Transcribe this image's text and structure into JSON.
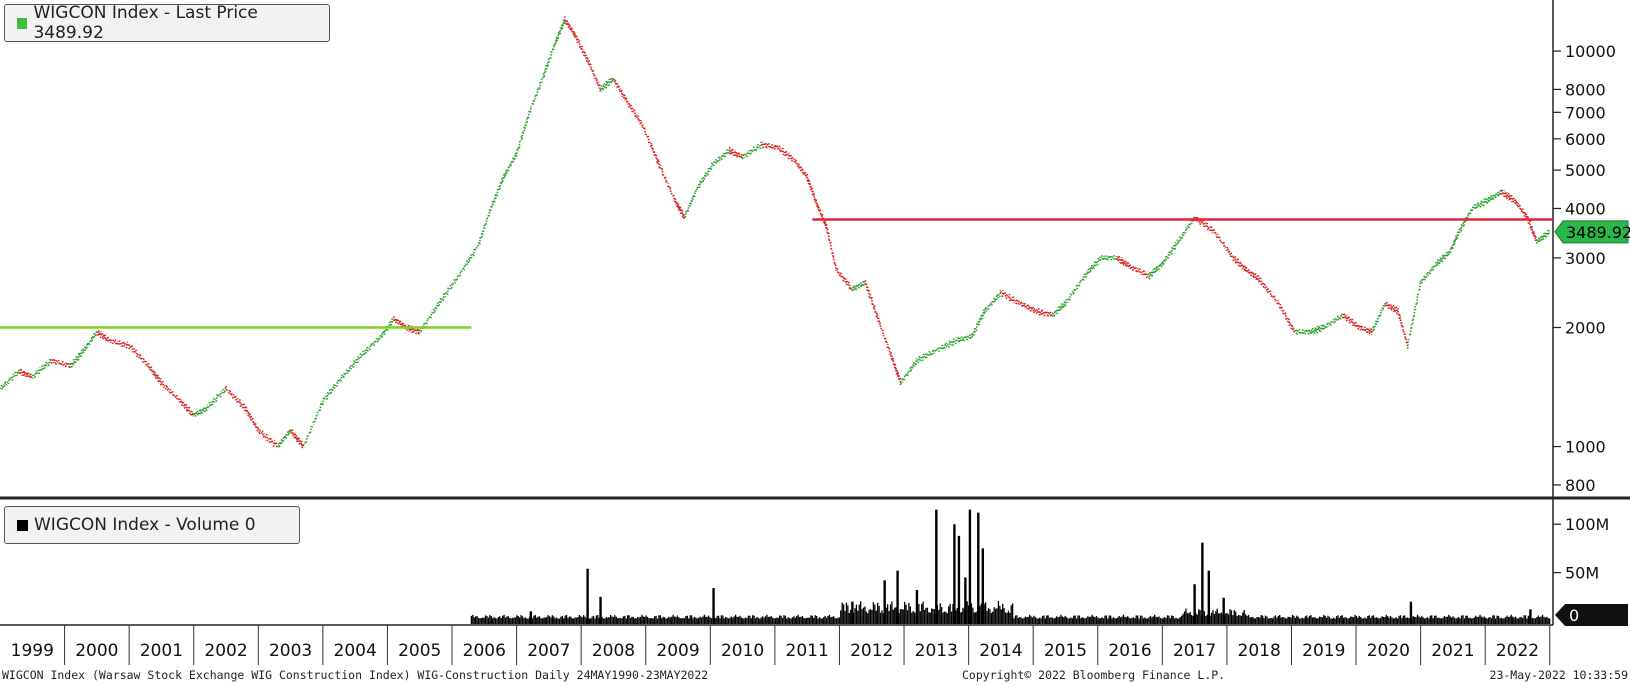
{
  "legend_price": {
    "text": "WIGCON Index - Last Price 3489.92",
    "color": "#3cbf3c"
  },
  "legend_volume": {
    "text": "WIGCON Index - Volume 0",
    "color": "#000000"
  },
  "footer": {
    "description": "WIGCON Index (Warsaw Stock Exchange WIG Construction Index) WIG-Construction  Daily 24MAY1990-23MAY2022",
    "copyright": "Copyright© 2022 Bloomberg Finance L.P.",
    "timestamp": "23-May-2022 10:33:59"
  },
  "chart_data": [
    {
      "type": "line",
      "name": "price",
      "scale": "log",
      "ylim": [
        750,
        13000
      ],
      "xlim": [
        1998.5,
        2022.55
      ],
      "y_ticks": [
        800,
        1000,
        2000,
        3000,
        4000,
        5000,
        6000,
        7000,
        8000,
        10000
      ],
      "y_tick_labels": [
        "800",
        "1000",
        "2000",
        "3000",
        "4000",
        "5000",
        "6000",
        "7000",
        "8000",
        "10000"
      ],
      "last_value_label": "3489.92",
      "up_color": "#2ca02c",
      "down_color": "#d62020",
      "points": [
        [
          1998.5,
          1400
        ],
        [
          1998.8,
          1550
        ],
        [
          1999.0,
          1500
        ],
        [
          1999.3,
          1650
        ],
        [
          1999.6,
          1600
        ],
        [
          1999.8,
          1750
        ],
        [
          2000.0,
          1950
        ],
        [
          2000.2,
          1850
        ],
        [
          2000.5,
          1800
        ],
        [
          2000.8,
          1600
        ],
        [
          2001.0,
          1450
        ],
        [
          2001.3,
          1300
        ],
        [
          2001.5,
          1200
        ],
        [
          2001.7,
          1250
        ],
        [
          2002.0,
          1400
        ],
        [
          2002.3,
          1250
        ],
        [
          2002.5,
          1100
        ],
        [
          2002.8,
          1000
        ],
        [
          2003.0,
          1100
        ],
        [
          2003.2,
          1000
        ],
        [
          2003.5,
          1300
        ],
        [
          2003.8,
          1500
        ],
        [
          2004.1,
          1700
        ],
        [
          2004.4,
          1900
        ],
        [
          2004.6,
          2100
        ],
        [
          2004.8,
          2000
        ],
        [
          2005.0,
          1950
        ],
        [
          2005.3,
          2300
        ],
        [
          2005.6,
          2700
        ],
        [
          2005.9,
          3200
        ],
        [
          2006.1,
          4000
        ],
        [
          2006.3,
          4800
        ],
        [
          2006.5,
          5500
        ],
        [
          2006.7,
          7000
        ],
        [
          2006.9,
          8500
        ],
        [
          2007.1,
          10500
        ],
        [
          2007.25,
          12000
        ],
        [
          2007.4,
          11000
        ],
        [
          2007.6,
          9500
        ],
        [
          2007.8,
          8000
        ],
        [
          2008.0,
          8500
        ],
        [
          2008.2,
          7500
        ],
        [
          2008.45,
          6500
        ],
        [
          2008.7,
          5200
        ],
        [
          2008.95,
          4200
        ],
        [
          2009.1,
          3800
        ],
        [
          2009.3,
          4500
        ],
        [
          2009.55,
          5200
        ],
        [
          2009.8,
          5600
        ],
        [
          2010.0,
          5400
        ],
        [
          2010.3,
          5800
        ],
        [
          2010.55,
          5700
        ],
        [
          2010.8,
          5300
        ],
        [
          2011.0,
          4800
        ],
        [
          2011.15,
          4100
        ],
        [
          2011.3,
          3600
        ],
        [
          2011.45,
          2800
        ],
        [
          2011.7,
          2500
        ],
        [
          2011.9,
          2600
        ],
        [
          2012.1,
          2100
        ],
        [
          2012.3,
          1700
        ],
        [
          2012.45,
          1450
        ],
        [
          2012.7,
          1650
        ],
        [
          2013.0,
          1750
        ],
        [
          2013.3,
          1850
        ],
        [
          2013.55,
          1900
        ],
        [
          2013.75,
          2200
        ],
        [
          2014.0,
          2450
        ],
        [
          2014.3,
          2300
        ],
        [
          2014.55,
          2200
        ],
        [
          2014.8,
          2150
        ],
        [
          2015.0,
          2300
        ],
        [
          2015.3,
          2700
        ],
        [
          2015.55,
          3000
        ],
        [
          2015.8,
          3000
        ],
        [
          2016.0,
          2850
        ],
        [
          2016.3,
          2700
        ],
        [
          2016.5,
          2900
        ],
        [
          2016.75,
          3300
        ],
        [
          2017.0,
          3800
        ],
        [
          2017.3,
          3500
        ],
        [
          2017.6,
          3000
        ],
        [
          2017.8,
          2800
        ],
        [
          2018.0,
          2650
        ],
        [
          2018.3,
          2300
        ],
        [
          2018.55,
          1950
        ],
        [
          2018.8,
          1950
        ],
        [
          2019.0,
          2000
        ],
        [
          2019.3,
          2150
        ],
        [
          2019.55,
          2000
        ],
        [
          2019.75,
          1950
        ],
        [
          2019.95,
          2300
        ],
        [
          2020.15,
          2200
        ],
        [
          2020.3,
          1800
        ],
        [
          2020.5,
          2600
        ],
        [
          2020.75,
          2900
        ],
        [
          2020.95,
          3100
        ],
        [
          2021.1,
          3500
        ],
        [
          2021.3,
          4000
        ],
        [
          2021.55,
          4200
        ],
        [
          2021.75,
          4400
        ],
        [
          2021.95,
          4200
        ],
        [
          2022.15,
          3800
        ],
        [
          2022.3,
          3300
        ],
        [
          2022.5,
          3490
        ]
      ],
      "reference_lines": [
        {
          "y": 2000,
          "x_from": 1998.5,
          "x_to": 2005.8,
          "color": "#7ed321"
        },
        {
          "y": 3750,
          "x_from": 2011.08,
          "x_to": 2022.55,
          "color": "#e8203a"
        }
      ]
    },
    {
      "type": "bar",
      "name": "volume",
      "ylim": [
        0,
        125000000
      ],
      "y_ticks": [
        0,
        50000000,
        100000000
      ],
      "y_tick_labels": [
        "0",
        "50M",
        "100M"
      ],
      "color": "#000000",
      "spikes": [
        [
          2006.72,
          10000000
        ],
        [
          2007.6,
          54000000
        ],
        [
          2007.8,
          25000000
        ],
        [
          2009.55,
          34000000
        ],
        [
          2011.7,
          20000000
        ],
        [
          2012.2,
          42000000
        ],
        [
          2012.4,
          52000000
        ],
        [
          2012.7,
          32000000
        ],
        [
          2013.0,
          115000000
        ],
        [
          2013.28,
          100000000
        ],
        [
          2013.35,
          88000000
        ],
        [
          2013.45,
          45000000
        ],
        [
          2013.52,
          115000000
        ],
        [
          2013.65,
          112000000
        ],
        [
          2013.72,
          75000000
        ],
        [
          2017.0,
          38000000
        ],
        [
          2017.12,
          81000000
        ],
        [
          2017.22,
          52000000
        ],
        [
          2017.45,
          24000000
        ],
        [
          2020.35,
          20000000
        ],
        [
          2022.2,
          12000000
        ]
      ],
      "last_value_label": "0"
    }
  ],
  "x_axis": {
    "years": [
      "1999",
      "2000",
      "2001",
      "2002",
      "2003",
      "2004",
      "2005",
      "2006",
      "2007",
      "2008",
      "2009",
      "2010",
      "2011",
      "2012",
      "2013",
      "2014",
      "2015",
      "2016",
      "2017",
      "2018",
      "2019",
      "2020",
      "2021",
      "2022"
    ]
  }
}
